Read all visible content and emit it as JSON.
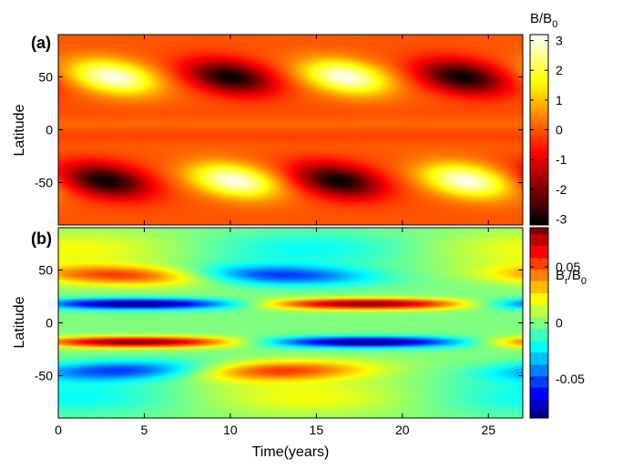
{
  "chart_data": [
    {
      "type": "heatmap",
      "panel_label": "(a)",
      "xlabel": "",
      "ylabel": "Latitude",
      "xlim": [
        0,
        27
      ],
      "ylim": [
        -90,
        90
      ],
      "xticks": [
        "0",
        "5",
        "10",
        "15",
        "20",
        "25"
      ],
      "yticks": [
        "50",
        "0",
        "-50"
      ],
      "colormap": "hot",
      "colorbar": {
        "title_main": "B/B",
        "title_sub": "0",
        "range": [
          -3.2,
          3.2
        ],
        "ticks": [
          "3",
          "2",
          "1",
          "0",
          "-1",
          "-2",
          "-3"
        ]
      },
      "pattern": {
        "period_years": 13.5,
        "positive_lobes": [
          {
            "t": 3.2,
            "lat": 50
          },
          {
            "t": 16.7,
            "lat": 50
          },
          {
            "t": 10.2,
            "lat": -48
          },
          {
            "t": 23.7,
            "lat": -48
          }
        ],
        "negative_lobes": [
          {
            "t": 10.0,
            "lat": 50
          },
          {
            "t": 23.5,
            "lat": 50
          },
          {
            "t": 2.8,
            "lat": -48
          },
          {
            "t": 16.3,
            "lat": -48
          }
        ],
        "amplitude": 3.1
      }
    },
    {
      "type": "heatmap",
      "panel_label": "(b)",
      "xlabel": "Time(years)",
      "ylabel": "Latitude",
      "xlim": [
        0,
        27
      ],
      "ylim": [
        -90,
        90
      ],
      "xticks": [
        "0",
        "5",
        "10",
        "15",
        "20",
        "25"
      ],
      "yticks": [
        "50",
        "0",
        "-50"
      ],
      "colormap": "jet",
      "colorbar": {
        "title_main": "B",
        "title_r": "r",
        "title_slash": "/B",
        "title_sub": "0",
        "range": [
          -0.085,
          0.085
        ],
        "ticks": [
          "0.05",
          "0",
          "-0.05"
        ]
      },
      "pattern": {
        "period_years": 13.5,
        "high_lat_band": {
          "north": 45,
          "south": -45,
          "positive_start_north": 1.5,
          "amplitude": 0.08
        },
        "low_lat_band": {
          "north": 18,
          "south": -18,
          "amplitude": 0.085
        }
      }
    }
  ],
  "colors": {
    "axis": "#000000",
    "background": "#ffffff"
  }
}
